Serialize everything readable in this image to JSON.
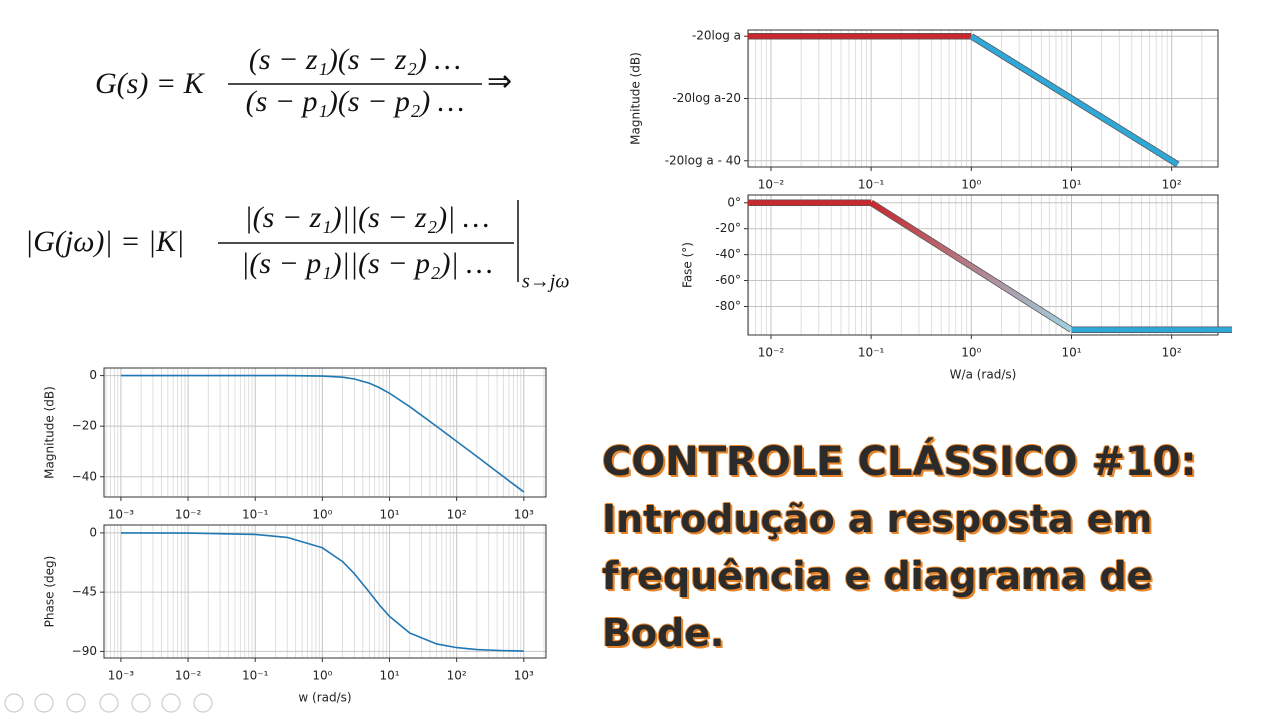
{
  "formulas": [
    {
      "lhs": "G(s) = K",
      "numerator": "(s − z₁)(s − z₂) …",
      "denominator": "(s − p₁)(s − p₂) …",
      "suffix": "⇒"
    },
    {
      "lhs": "|G(jω)| = |K|",
      "numerator": "|(s − z₁)||(s − z₂)| …",
      "denominator": "|(s − p₁)||(s − p₂)| …",
      "evaluated_at": "s→jω"
    }
  ],
  "title_lines": [
    "CONTROLE CLÁSSICO #10:",
    "Introdução a resposta em",
    "frequência e diagrama de",
    "Bode."
  ],
  "chart_data": [
    {
      "type": "line",
      "xscale": "log",
      "xlim": [
        0.0059,
        290
      ],
      "xticks": [
        {
          "value": 0.01,
          "label": "10⁻²"
        },
        {
          "value": 0.1,
          "label": "10⁻¹"
        },
        {
          "value": 1,
          "label": "10⁰"
        },
        {
          "value": 10,
          "label": "10¹"
        },
        {
          "value": 100,
          "label": "10²"
        }
      ],
      "ylim": [
        -42,
        2
      ],
      "yticks": [
        {
          "value": 0,
          "label": "-20log a"
        },
        {
          "value": -20,
          "label": "-20log a-20"
        },
        {
          "value": -40,
          "label": "-20log a - 40"
        }
      ],
      "ylabel": "Magnitude (dB)",
      "grid": true,
      "series": [
        {
          "color": "#c8282e",
          "x": [
            0.0059,
            1
          ],
          "values": [
            0,
            0
          ]
        },
        {
          "color": "#2fa8d8",
          "x": [
            1,
            115
          ],
          "values": [
            0,
            -41.2
          ]
        }
      ]
    },
    {
      "type": "line",
      "xscale": "log",
      "xlim": [
        0.0059,
        290
      ],
      "xticks": [
        {
          "value": 0.01,
          "label": "10⁻²"
        },
        {
          "value": 0.1,
          "label": "10⁻¹"
        },
        {
          "value": 1,
          "label": "10⁰"
        },
        {
          "value": 10,
          "label": "10¹"
        },
        {
          "value": 100,
          "label": "10²"
        }
      ],
      "ylim": [
        -102,
        6
      ],
      "yticks": [
        {
          "value": 0,
          "label": "0°"
        },
        {
          "value": -20,
          "label": "-20°"
        },
        {
          "value": -40,
          "label": "-40°"
        },
        {
          "value": -60,
          "label": "-60°"
        },
        {
          "value": -80,
          "label": "-80°"
        }
      ],
      "xlabel": "W/a (rad/s)",
      "ylabel": "Fase (°)",
      "grid": true,
      "series": [
        {
          "color": "#c8282e",
          "x": [
            0.0059,
            0.1
          ],
          "values": [
            0,
            0
          ]
        },
        {
          "color": [
            "#c8282e",
            "#9fd3e3"
          ],
          "x": [
            0.1,
            10
          ],
          "values": [
            0,
            -98
          ]
        },
        {
          "color": "#2fa8d8",
          "x": [
            10,
            400
          ],
          "values": [
            -98,
            -98
          ]
        }
      ]
    },
    {
      "type": "line",
      "xscale": "log",
      "xlim": [
        0.00056,
        2140
      ],
      "xticks": [
        {
          "value": 0.001,
          "label": "10⁻³"
        },
        {
          "value": 0.01,
          "label": "10⁻²"
        },
        {
          "value": 0.1,
          "label": "10⁻¹"
        },
        {
          "value": 1,
          "label": "10⁰"
        },
        {
          "value": 10,
          "label": "10¹"
        },
        {
          "value": 100,
          "label": "10²"
        },
        {
          "value": 1000,
          "label": "10³"
        }
      ],
      "ylim": [
        -48,
        3
      ],
      "yticks": [
        0,
        {
          "value": -20,
          "label": "−20"
        },
        {
          "value": -40,
          "label": "−40"
        }
      ],
      "ylabel": "Magnitude (dB)",
      "grid": true,
      "series": [
        {
          "color": "#1f77b4",
          "x": [
            0.001,
            0.01,
            0.1,
            0.3,
            1,
            2,
            3,
            5,
            7,
            10,
            20,
            50,
            100,
            200,
            500,
            1000
          ],
          "values": [
            0,
            0,
            0,
            0,
            -0.17,
            -0.64,
            -1.34,
            -3.01,
            -4.71,
            -6.99,
            -12.3,
            -20.04,
            -26.0,
            -32.0,
            -40.0,
            -46.0
          ]
        }
      ]
    },
    {
      "type": "line",
      "xscale": "log",
      "xlim": [
        0.00056,
        2140
      ],
      "xticks": [
        {
          "value": 0.001,
          "label": "10⁻³"
        },
        {
          "value": 0.01,
          "label": "10⁻²"
        },
        {
          "value": 0.1,
          "label": "10⁻¹"
        },
        {
          "value": 1,
          "label": "10⁰"
        },
        {
          "value": 10,
          "label": "10¹"
        },
        {
          "value": 100,
          "label": "10²"
        },
        {
          "value": 1000,
          "label": "10³"
        }
      ],
      "ylim": [
        -95,
        6
      ],
      "yticks": [
        0,
        {
          "value": -45,
          "label": "−45"
        },
        {
          "value": -90,
          "label": "−90"
        }
      ],
      "xlabel": "w (rad/s)",
      "ylabel": "Phase (deg)",
      "grid": true,
      "series": [
        {
          "color": "#1f77b4",
          "x": [
            0.001,
            0.01,
            0.1,
            0.3,
            1,
            2,
            3,
            5,
            7,
            10,
            20,
            50,
            100,
            200,
            500,
            1000
          ],
          "values": [
            0,
            -0.11,
            -1.15,
            -3.43,
            -11.3,
            -21.8,
            -31.0,
            -45,
            -54.5,
            -63.4,
            -76.0,
            -84.3,
            -87.1,
            -88.6,
            -89.4,
            -89.7
          ]
        }
      ]
    }
  ]
}
